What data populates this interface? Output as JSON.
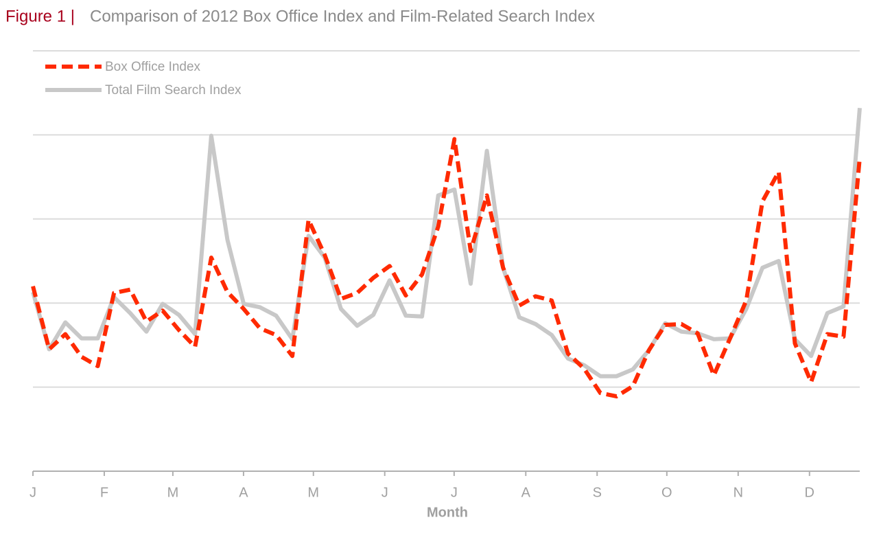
{
  "chart_data": {
    "type": "line",
    "figure_label": "Figure 1 |",
    "title": "Comparison of 2012 Box Office Index and Film-Related Search Index",
    "x_label": "Month",
    "x": [
      0,
      1,
      2,
      3,
      4,
      5,
      6,
      7,
      8,
      9,
      10,
      11,
      12,
      13,
      14,
      15,
      16,
      17,
      18,
      19,
      20,
      21,
      22,
      23,
      24,
      25,
      26,
      27,
      28,
      29,
      30,
      31,
      32,
      33,
      34,
      35,
      36,
      37,
      38,
      39,
      40,
      41,
      42,
      43,
      44,
      45,
      46,
      47,
      48,
      49,
      50,
      51
    ],
    "series": [
      {
        "name": "Box Office Index",
        "color": "#ff2a00",
        "dashed": true,
        "values": [
          2.2,
          1.45,
          1.63,
          1.36,
          1.25,
          2.12,
          2.16,
          1.78,
          1.91,
          1.68,
          1.48,
          2.54,
          2.13,
          1.93,
          1.7,
          1.62,
          1.37,
          2.99,
          2.57,
          2.05,
          2.12,
          2.3,
          2.44,
          2.09,
          2.34,
          2.91,
          3.95,
          2.62,
          3.28,
          2.42,
          1.97,
          2.08,
          2.03,
          1.4,
          1.22,
          0.93,
          0.89,
          1.01,
          1.44,
          1.74,
          1.75,
          1.64,
          1.14,
          1.58,
          2.03,
          3.21,
          3.56,
          1.52,
          1.06,
          1.63,
          1.6,
          3.73
        ]
      },
      {
        "name": "Total Film Search Index",
        "color": "#c8c8c8",
        "dashed": false,
        "values": [
          2.13,
          1.45,
          1.77,
          1.58,
          1.58,
          2.07,
          1.88,
          1.66,
          1.99,
          1.86,
          1.63,
          3.99,
          2.75,
          1.99,
          1.95,
          1.85,
          1.57,
          2.8,
          2.54,
          1.93,
          1.73,
          1.86,
          2.27,
          1.85,
          1.84,
          3.28,
          3.35,
          2.23,
          3.81,
          2.42,
          1.83,
          1.75,
          1.62,
          1.34,
          1.26,
          1.13,
          1.13,
          1.21,
          1.44,
          1.76,
          1.66,
          1.64,
          1.57,
          1.58,
          1.93,
          2.42,
          2.5,
          1.57,
          1.37,
          1.88,
          1.96,
          4.32
        ]
      }
    ],
    "xlim": [
      0,
      51
    ],
    "xticks": [
      {
        "value": 0,
        "label": "J"
      },
      {
        "value": 4.4,
        "label": "F"
      },
      {
        "value": 8.63,
        "label": "M"
      },
      {
        "value": 12.99,
        "label": "A"
      },
      {
        "value": 17.3,
        "label": "M"
      },
      {
        "value": 21.7,
        "label": "J"
      },
      {
        "value": 25.98,
        "label": "J"
      },
      {
        "value": 30.4,
        "label": "A"
      },
      {
        "value": 34.8,
        "label": "S"
      },
      {
        "value": 39.1,
        "label": "O"
      },
      {
        "value": 43.5,
        "label": "N"
      },
      {
        "value": 47.9,
        "label": "D"
      }
    ],
    "ylim": [
      0,
      5
    ],
    "yticks": [
      0,
      1,
      2,
      3,
      4,
      5
    ],
    "grid": true,
    "legend": "upper left"
  }
}
